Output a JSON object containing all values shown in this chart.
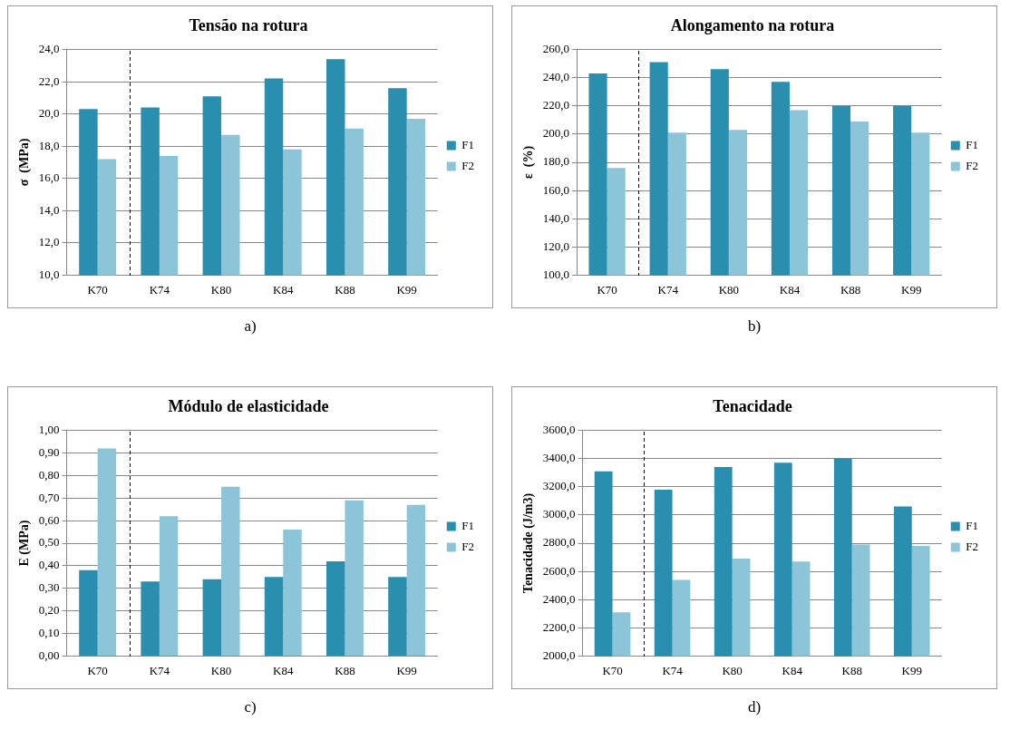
{
  "chart_data": [
    {
      "type": "bar",
      "title": "Tensão na rotura",
      "ylabel": "σ  (MPa)",
      "categories": [
        "K70",
        "K74",
        "K80",
        "K84",
        "K88",
        "K99"
      ],
      "series": [
        {
          "name": "F1",
          "color": "#2a8fae",
          "values": [
            20.3,
            20.4,
            21.1,
            22.2,
            23.4,
            21.6
          ]
        },
        {
          "name": "F2",
          "color": "#8cc4d8",
          "values": [
            17.2,
            17.4,
            18.7,
            17.8,
            19.1,
            19.7
          ]
        }
      ],
      "ylim": [
        10,
        24
      ],
      "yticks": [
        {
          "value": 10,
          "label": "10,0"
        },
        {
          "value": 12,
          "label": "12,0"
        },
        {
          "value": 14,
          "label": "14,0"
        },
        {
          "value": 16,
          "label": "16,0"
        },
        {
          "value": 18,
          "label": "18,0"
        },
        {
          "value": 20,
          "label": "20,0"
        },
        {
          "value": 22,
          "label": "22,0"
        },
        {
          "value": 24,
          "label": "24,0"
        }
      ],
      "grid": "y",
      "legend": "right",
      "annotations": [
        "a)"
      ]
    },
    {
      "type": "bar",
      "title": "Alongamento na rotura",
      "ylabel": "ε  (%)",
      "categories": [
        "K70",
        "K74",
        "K80",
        "K84",
        "K88",
        "K99"
      ],
      "series": [
        {
          "name": "F1",
          "color": "#2a8fae",
          "values": [
            243,
            251,
            246,
            237,
            220,
            220
          ]
        },
        {
          "name": "F2",
          "color": "#8cc4d8",
          "values": [
            176,
            201,
            203,
            217,
            209,
            201
          ]
        }
      ],
      "ylim": [
        100,
        260
      ],
      "yticks": [
        {
          "value": 100,
          "label": "100,0"
        },
        {
          "value": 120,
          "label": "120,0"
        },
        {
          "value": 140,
          "label": "140,0"
        },
        {
          "value": 160,
          "label": "160,0"
        },
        {
          "value": 180,
          "label": "180,0"
        },
        {
          "value": 200,
          "label": "200,0"
        },
        {
          "value": 220,
          "label": "220,0"
        },
        {
          "value": 240,
          "label": "240,0"
        },
        {
          "value": 260,
          "label": "260,0"
        }
      ],
      "grid": "y",
      "legend": "right",
      "annotations": [
        "b)"
      ]
    },
    {
      "type": "bar",
      "title": "Módulo de elasticidade",
      "ylabel": "E (MPa)",
      "categories": [
        "K70",
        "K74",
        "K80",
        "K84",
        "K88",
        "K99"
      ],
      "series": [
        {
          "name": "F1",
          "color": "#2a8fae",
          "values": [
            0.38,
            0.33,
            0.34,
            0.35,
            0.42,
            0.35
          ]
        },
        {
          "name": "F2",
          "color": "#8cc4d8",
          "values": [
            0.92,
            0.62,
            0.75,
            0.56,
            0.69,
            0.67
          ]
        }
      ],
      "ylim": [
        0,
        1
      ],
      "yticks": [
        {
          "value": 0,
          "label": "0,00"
        },
        {
          "value": 0.1,
          "label": "0,10"
        },
        {
          "value": 0.2,
          "label": "0,20"
        },
        {
          "value": 0.3,
          "label": "0,30"
        },
        {
          "value": 0.4,
          "label": "0,40"
        },
        {
          "value": 0.5,
          "label": "0,50"
        },
        {
          "value": 0.6,
          "label": "0,60"
        },
        {
          "value": 0.7,
          "label": "0,70"
        },
        {
          "value": 0.8,
          "label": "0,80"
        },
        {
          "value": 0.9,
          "label": "0,90"
        },
        {
          "value": 1,
          "label": "1,00"
        }
      ],
      "grid": "y",
      "legend": "right",
      "annotations": [
        "c)"
      ]
    },
    {
      "type": "bar",
      "title": "Tenacidade",
      "ylabel": "Tenacidade (J/m3)",
      "categories": [
        "K70",
        "K74",
        "K80",
        "K84",
        "K88",
        "K99"
      ],
      "series": [
        {
          "name": "F1",
          "color": "#2a8fae",
          "values": [
            3310,
            3180,
            3340,
            3370,
            3400,
            3060
          ]
        },
        {
          "name": "F2",
          "color": "#8cc4d8",
          "values": [
            2310,
            2540,
            2690,
            2670,
            2790,
            2780
          ]
        }
      ],
      "ylim": [
        2000,
        3600
      ],
      "yticks": [
        {
          "value": 2000,
          "label": "2000,0"
        },
        {
          "value": 2200,
          "label": "2200,0"
        },
        {
          "value": 2400,
          "label": "2400,0"
        },
        {
          "value": 2600,
          "label": "2600,0"
        },
        {
          "value": 2800,
          "label": "2800,0"
        },
        {
          "value": 3000,
          "label": "3000,0"
        },
        {
          "value": 3200,
          "label": "3200,0"
        },
        {
          "value": 3400,
          "label": "3400,0"
        },
        {
          "value": 3600,
          "label": "3600,0"
        }
      ],
      "grid": "y",
      "legend": "right",
      "annotations": [
        "d)"
      ]
    }
  ]
}
